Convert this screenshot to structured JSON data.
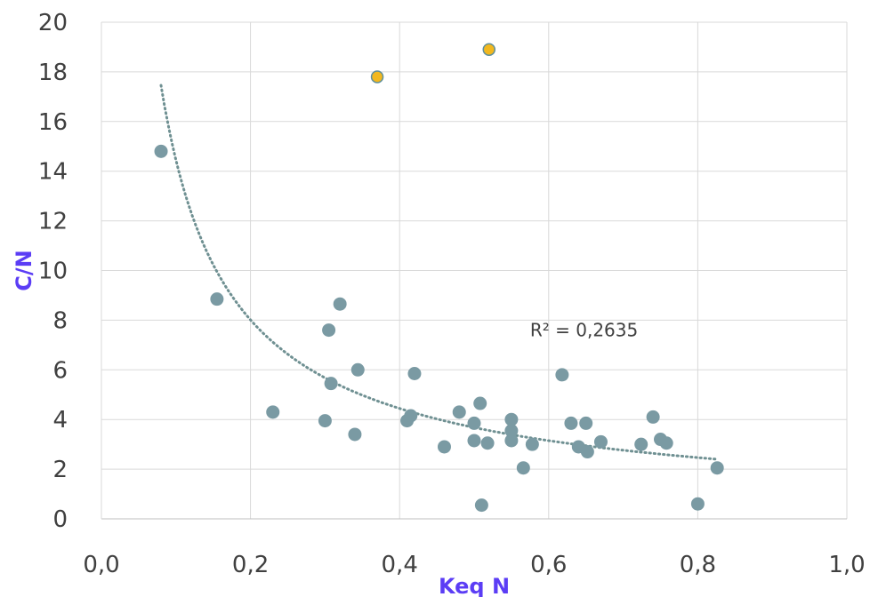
{
  "chart_data": {
    "type": "scatter",
    "title": "",
    "xlabel": "Keq N",
    "ylabel": "C/N",
    "xlim": [
      0.0,
      1.0
    ],
    "ylim": [
      0,
      20
    ],
    "x_ticks": [
      "0,0",
      "0,2",
      "0,4",
      "0,6",
      "0,8",
      "1,0"
    ],
    "y_ticks": [
      "0",
      "2",
      "4",
      "6",
      "8",
      "10",
      "12",
      "14",
      "16",
      "18",
      "20"
    ],
    "grid": true,
    "legend": "none",
    "series": [
      {
        "color": "#7a9aa3",
        "points": [
          [
            0.08,
            14.8
          ],
          [
            0.155,
            8.85
          ],
          [
            0.23,
            4.3
          ],
          [
            0.3,
            3.95
          ],
          [
            0.305,
            7.6
          ],
          [
            0.308,
            5.45
          ],
          [
            0.32,
            8.65
          ],
          [
            0.34,
            3.4
          ],
          [
            0.344,
            6.0
          ],
          [
            0.41,
            3.95
          ],
          [
            0.415,
            4.15
          ],
          [
            0.42,
            5.85
          ],
          [
            0.46,
            2.9
          ],
          [
            0.48,
            4.3
          ],
          [
            0.5,
            3.85
          ],
          [
            0.5,
            3.15
          ],
          [
            0.508,
            4.65
          ],
          [
            0.51,
            0.55
          ],
          [
            0.518,
            3.05
          ],
          [
            0.55,
            4.0
          ],
          [
            0.55,
            3.55
          ],
          [
            0.55,
            3.15
          ],
          [
            0.566,
            2.05
          ],
          [
            0.578,
            3.0
          ],
          [
            0.618,
            5.8
          ],
          [
            0.63,
            3.85
          ],
          [
            0.64,
            2.9
          ],
          [
            0.65,
            3.85
          ],
          [
            0.652,
            2.7
          ],
          [
            0.67,
            3.1
          ],
          [
            0.724,
            3.0
          ],
          [
            0.74,
            4.1
          ],
          [
            0.75,
            3.2
          ],
          [
            0.758,
            3.05
          ],
          [
            0.8,
            0.6
          ],
          [
            0.826,
            2.05
          ]
        ]
      },
      {
        "color": "#f2b81e",
        "points": [
          [
            0.37,
            17.8
          ],
          [
            0.52,
            18.9
          ]
        ]
      }
    ],
    "trendline": {
      "type": "power",
      "coef": 2.04,
      "exp": -0.85,
      "x_start": 0.08,
      "x_end": 0.826,
      "color": "#6f9092",
      "style": "dotted"
    },
    "annotations": [
      {
        "text": "R² = 0,2635",
        "x": 0.575,
        "y": 7.6
      }
    ]
  }
}
